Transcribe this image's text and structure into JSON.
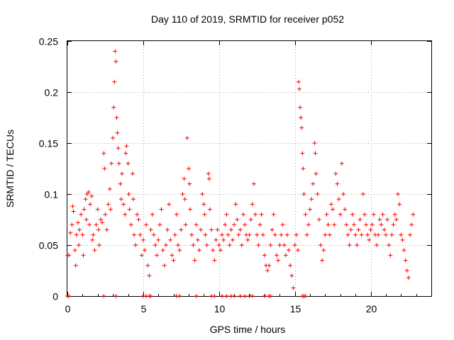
{
  "chart_data": {
    "type": "scatter",
    "title": "Day 110 of 2019, SRMTID for receiver p052",
    "xlabel": "GPS time / hours",
    "ylabel": "SRMTID / TECUs",
    "xlim": [
      0,
      24
    ],
    "ylim": [
      0,
      0.25
    ],
    "x_ticks": [
      0,
      5,
      10,
      15,
      20
    ],
    "x_tick_labels": [
      "0",
      "5",
      "10",
      "15",
      "20"
    ],
    "y_ticks": [
      0,
      0.05,
      0.1,
      0.15,
      0.2,
      0.25
    ],
    "y_tick_labels": [
      "0",
      "0.05",
      "0.1",
      "0.15",
      "0.2",
      "0.25"
    ],
    "grid": true,
    "marker": "plus",
    "series": [
      {
        "name": "SRMTID",
        "color": "#ff0000",
        "points": [
          [
            0.0,
            0.04
          ],
          [
            0.1,
            0.04
          ],
          [
            0.2,
            0.062
          ],
          [
            0.3,
            0.07
          ],
          [
            0.35,
            0.088
          ],
          [
            0.4,
            0.083
          ],
          [
            0.5,
            0.045
          ],
          [
            0.55,
            0.03
          ],
          [
            0.6,
            0.06
          ],
          [
            0.7,
            0.072
          ],
          [
            0.75,
            0.05
          ],
          [
            0.8,
            0.065
          ],
          [
            0.9,
            0.08
          ],
          [
            1.0,
            0.06
          ],
          [
            1.05,
            0.04
          ],
          [
            1.1,
            0.085
          ],
          [
            1.2,
            0.095
          ],
          [
            1.25,
            0.075
          ],
          [
            1.3,
            0.1
          ],
          [
            1.4,
            0.102
          ],
          [
            1.45,
            0.07
          ],
          [
            1.5,
            0.09
          ],
          [
            1.6,
            0.098
          ],
          [
            1.65,
            0.055
          ],
          [
            1.7,
            0.06
          ],
          [
            1.8,
            0.045
          ],
          [
            1.9,
            0.07
          ],
          [
            2.0,
            0.085
          ],
          [
            2.05,
            0.065
          ],
          [
            2.1,
            0.05
          ],
          [
            2.2,
            0.075
          ],
          [
            2.3,
            0.072
          ],
          [
            2.4,
            0.14
          ],
          [
            2.45,
            0.125
          ],
          [
            2.5,
            0.08
          ],
          [
            2.6,
            0.065
          ],
          [
            2.7,
            0.09
          ],
          [
            2.8,
            0.105
          ],
          [
            2.85,
            0.085
          ],
          [
            2.9,
            0.13
          ],
          [
            3.0,
            0.155
          ],
          [
            3.05,
            0.185
          ],
          [
            3.1,
            0.21
          ],
          [
            3.15,
            0.24
          ],
          [
            3.2,
            0.23
          ],
          [
            3.25,
            0.175
          ],
          [
            3.3,
            0.16
          ],
          [
            3.35,
            0.145
          ],
          [
            3.4,
            0.13
          ],
          [
            3.5,
            0.11
          ],
          [
            3.55,
            0.095
          ],
          [
            3.6,
            0.12
          ],
          [
            3.7,
            0.09
          ],
          [
            3.8,
            0.08
          ],
          [
            3.85,
            0.14
          ],
          [
            3.9,
            0.147
          ],
          [
            4.0,
            0.13
          ],
          [
            4.05,
            0.1
          ],
          [
            4.1,
            0.085
          ],
          [
            4.2,
            0.07
          ],
          [
            4.3,
            0.12
          ],
          [
            4.35,
            0.095
          ],
          [
            4.4,
            0.06
          ],
          [
            4.5,
            0.05
          ],
          [
            4.6,
            0.08
          ],
          [
            4.7,
            0.075
          ],
          [
            4.8,
            0.06
          ],
          [
            4.9,
            0.04
          ],
          [
            5.0,
            0.055
          ],
          [
            5.1,
            0.045
          ],
          [
            5.2,
            0.07
          ],
          [
            5.3,
            0.03
          ],
          [
            5.4,
            0.02
          ],
          [
            5.5,
            0.065
          ],
          [
            5.6,
            0.08
          ],
          [
            5.7,
            0.06
          ],
          [
            5.8,
            0.05
          ],
          [
            5.9,
            0.04
          ],
          [
            6.0,
            0.055
          ],
          [
            6.1,
            0.07
          ],
          [
            6.2,
            0.085
          ],
          [
            6.3,
            0.045
          ],
          [
            6.4,
            0.03
          ],
          [
            6.5,
            0.05
          ],
          [
            6.6,
            0.065
          ],
          [
            6.7,
            0.09
          ],
          [
            6.8,
            0.055
          ],
          [
            6.9,
            0.04
          ],
          [
            7.0,
            0.035
          ],
          [
            7.1,
            0.06
          ],
          [
            7.2,
            0.08
          ],
          [
            7.3,
            0.05
          ],
          [
            7.4,
            0.045
          ],
          [
            7.5,
            0.065
          ],
          [
            7.6,
            0.1
          ],
          [
            7.7,
            0.115
          ],
          [
            7.75,
            0.095
          ],
          [
            7.8,
            0.07
          ],
          [
            7.9,
            0.155
          ],
          [
            8.0,
            0.125
          ],
          [
            8.05,
            0.11
          ],
          [
            8.1,
            0.085
          ],
          [
            8.2,
            0.06
          ],
          [
            8.3,
            0.05
          ],
          [
            8.4,
            0.035
          ],
          [
            8.5,
            0.07
          ],
          [
            8.6,
            0.055
          ],
          [
            8.7,
            0.045
          ],
          [
            8.8,
            0.065
          ],
          [
            8.9,
            0.1
          ],
          [
            9.0,
            0.09
          ],
          [
            9.05,
            0.08
          ],
          [
            9.1,
            0.06
          ],
          [
            9.2,
            0.05
          ],
          [
            9.3,
            0.12
          ],
          [
            9.35,
            0.115
          ],
          [
            9.4,
            0.085
          ],
          [
            9.5,
            0.065
          ],
          [
            9.6,
            0.045
          ],
          [
            9.7,
            0.035
          ],
          [
            9.8,
            0.055
          ],
          [
            9.9,
            0.065
          ],
          [
            10.0,
            0.05
          ],
          [
            10.1,
            0.045
          ],
          [
            10.2,
            0.06
          ],
          [
            10.3,
            0.055
          ],
          [
            10.4,
            0.07
          ],
          [
            10.5,
            0.08
          ],
          [
            10.6,
            0.06
          ],
          [
            10.7,
            0.05
          ],
          [
            10.8,
            0.065
          ],
          [
            10.9,
            0.055
          ],
          [
            11.0,
            0.07
          ],
          [
            11.1,
            0.09
          ],
          [
            11.2,
            0.075
          ],
          [
            11.3,
            0.06
          ],
          [
            11.4,
            0.065
          ],
          [
            11.5,
            0.05
          ],
          [
            11.6,
            0.08
          ],
          [
            11.7,
            0.07
          ],
          [
            11.8,
            0.06
          ],
          [
            11.9,
            0.055
          ],
          [
            12.0,
            0.06
          ],
          [
            12.1,
            0.075
          ],
          [
            12.2,
            0.09
          ],
          [
            12.3,
            0.11
          ],
          [
            12.4,
            0.08
          ],
          [
            12.5,
            0.06
          ],
          [
            12.6,
            0.05
          ],
          [
            12.7,
            0.07
          ],
          [
            12.8,
            0.08
          ],
          [
            12.9,
            0.06
          ],
          [
            13.0,
            0.04
          ],
          [
            13.1,
            0.03
          ],
          [
            13.2,
            0.025
          ],
          [
            13.3,
            0.03
          ],
          [
            13.4,
            0.05
          ],
          [
            13.5,
            0.065
          ],
          [
            13.6,
            0.08
          ],
          [
            13.7,
            0.06
          ],
          [
            13.8,
            0.04
          ],
          [
            13.9,
            0.035
          ],
          [
            14.0,
            0.05
          ],
          [
            14.1,
            0.06
          ],
          [
            14.2,
            0.07
          ],
          [
            14.3,
            0.05
          ],
          [
            14.4,
            0.04
          ],
          [
            14.5,
            0.06
          ],
          [
            14.6,
            0.045
          ],
          [
            14.7,
            0.03
          ],
          [
            14.8,
            0.02
          ],
          [
            14.9,
            0.008
          ],
          [
            15.0,
            0.05
          ],
          [
            15.1,
            0.06
          ],
          [
            15.2,
            0.045
          ],
          [
            15.25,
            0.21
          ],
          [
            15.3,
            0.203
          ],
          [
            15.35,
            0.185
          ],
          [
            15.4,
            0.175
          ],
          [
            15.45,
            0.165
          ],
          [
            15.5,
            0.14
          ],
          [
            15.55,
            0.125
          ],
          [
            15.6,
            0.1
          ],
          [
            15.7,
            0.08
          ],
          [
            15.8,
            0.06
          ],
          [
            15.9,
            0.07
          ],
          [
            16.0,
            0.085
          ],
          [
            16.1,
            0.095
          ],
          [
            16.2,
            0.11
          ],
          [
            16.3,
            0.15
          ],
          [
            16.35,
            0.14
          ],
          [
            16.4,
            0.12
          ],
          [
            16.5,
            0.1
          ],
          [
            16.6,
            0.075
          ],
          [
            16.7,
            0.05
          ],
          [
            16.8,
            0.035
          ],
          [
            16.9,
            0.045
          ],
          [
            17.0,
            0.06
          ],
          [
            17.1,
            0.08
          ],
          [
            17.2,
            0.07
          ],
          [
            17.3,
            0.06
          ],
          [
            17.4,
            0.09
          ],
          [
            17.5,
            0.085
          ],
          [
            17.6,
            0.07
          ],
          [
            17.7,
            0.12
          ],
          [
            17.8,
            0.11
          ],
          [
            17.9,
            0.095
          ],
          [
            18.0,
            0.08
          ],
          [
            18.1,
            0.13
          ],
          [
            18.2,
            0.1
          ],
          [
            18.3,
            0.085
          ],
          [
            18.4,
            0.07
          ],
          [
            18.5,
            0.06
          ],
          [
            18.6,
            0.05
          ],
          [
            18.7,
            0.065
          ],
          [
            18.8,
            0.08
          ],
          [
            18.9,
            0.07
          ],
          [
            19.0,
            0.06
          ],
          [
            19.1,
            0.05
          ],
          [
            19.2,
            0.065
          ],
          [
            19.3,
            0.075
          ],
          [
            19.4,
            0.06
          ],
          [
            19.5,
            0.1
          ],
          [
            19.6,
            0.08
          ],
          [
            19.7,
            0.07
          ],
          [
            19.8,
            0.06
          ],
          [
            19.9,
            0.055
          ],
          [
            20.0,
            0.065
          ],
          [
            20.1,
            0.07
          ],
          [
            20.2,
            0.08
          ],
          [
            20.3,
            0.06
          ],
          [
            20.4,
            0.05
          ],
          [
            20.5,
            0.06
          ],
          [
            20.6,
            0.075
          ],
          [
            20.7,
            0.07
          ],
          [
            20.8,
            0.08
          ],
          [
            20.9,
            0.065
          ],
          [
            21.0,
            0.06
          ],
          [
            21.1,
            0.075
          ],
          [
            21.2,
            0.05
          ],
          [
            21.3,
            0.04
          ],
          [
            21.4,
            0.06
          ],
          [
            21.5,
            0.07
          ],
          [
            21.6,
            0.08
          ],
          [
            21.7,
            0.075
          ],
          [
            21.8,
            0.1
          ],
          [
            21.9,
            0.09
          ],
          [
            22.0,
            0.06
          ],
          [
            22.1,
            0.055
          ],
          [
            22.2,
            0.045
          ],
          [
            22.3,
            0.035
          ],
          [
            22.4,
            0.025
          ],
          [
            22.5,
            0.018
          ],
          [
            22.6,
            0.06
          ],
          [
            22.7,
            0.07
          ],
          [
            22.8,
            0.08
          ]
        ]
      }
    ],
    "zero_points": [
      0.0,
      0.1,
      2.4,
      3.2,
      5.0,
      5.2,
      5.4,
      5.5,
      7.2,
      7.4,
      8.5,
      9.5,
      9.7,
      10.2,
      10.5,
      10.8,
      11.0,
      11.4,
      11.7,
      12.0,
      12.2,
      13.0,
      13.3,
      13.4,
      15.5,
      15.6,
      15.7
    ]
  }
}
